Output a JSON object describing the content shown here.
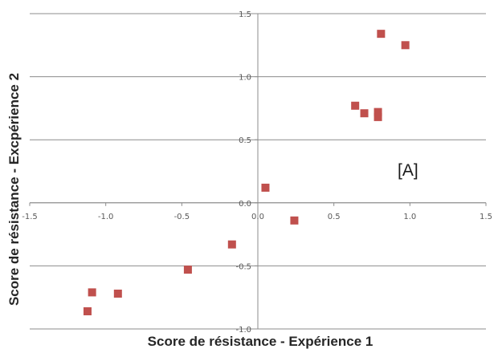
{
  "chart_data": {
    "type": "scatter",
    "title": "",
    "xlabel": "Score de résistance - Expérience 1",
    "ylabel": "Score de résistance - Excpérience 2",
    "xlim": [
      -1.5,
      1.5
    ],
    "ylim": [
      -1.0,
      1.5
    ],
    "x_ticks": [
      "-1.5",
      "-1.0",
      "-0.5",
      "0.0",
      "0.5",
      "1.0",
      "1.5"
    ],
    "y_ticks": [
      "-1.0",
      "-0.5",
      "0.0",
      "0.5",
      "1.0",
      "1.5"
    ],
    "grid": "horizontal",
    "legend": "none",
    "annotation": "[A]",
    "marker": "square",
    "marker_color": "#c0504d",
    "points": [
      {
        "x": 0.81,
        "y": 1.34
      },
      {
        "x": 0.97,
        "y": 1.25
      },
      {
        "x": 0.64,
        "y": 0.77
      },
      {
        "x": 0.7,
        "y": 0.71
      },
      {
        "x": 0.79,
        "y": 0.72
      },
      {
        "x": 0.79,
        "y": 0.68
      },
      {
        "x": 0.05,
        "y": 0.12
      },
      {
        "x": 0.24,
        "y": -0.14
      },
      {
        "x": -0.17,
        "y": -0.33
      },
      {
        "x": -0.46,
        "y": -0.53
      },
      {
        "x": -1.09,
        "y": -0.71
      },
      {
        "x": -0.92,
        "y": -0.72
      },
      {
        "x": -1.12,
        "y": -0.86
      }
    ]
  }
}
